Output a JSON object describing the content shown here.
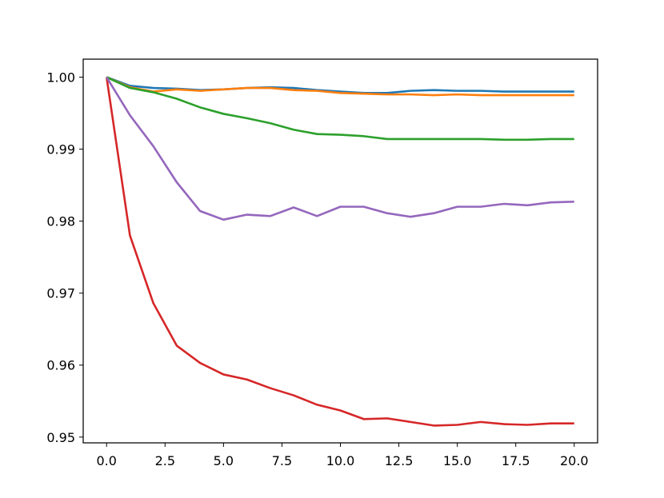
{
  "chart_data": {
    "type": "line",
    "title": "",
    "xlabel": "",
    "ylabel": "",
    "xlim": [
      -1,
      21
    ],
    "ylim": [
      0.9492,
      1.0025
    ],
    "grid": false,
    "x_ticks": [
      0,
      2.5,
      5,
      7.5,
      10,
      12.5,
      15,
      17.5,
      20
    ],
    "x_tick_labels": [
      "0.0",
      "2.5",
      "5.0",
      "7.5",
      "10.0",
      "12.5",
      "15.0",
      "17.5",
      "20.0"
    ],
    "y_ticks": [
      0.95,
      0.96,
      0.97,
      0.98,
      0.99,
      1.0
    ],
    "y_tick_labels": [
      "0.95",
      "0.96",
      "0.97",
      "0.98",
      "0.99",
      "1.00"
    ],
    "x": [
      0,
      1,
      2,
      3,
      4,
      5,
      6,
      7,
      8,
      9,
      10,
      11,
      12,
      13,
      14,
      15,
      16,
      17,
      18,
      19,
      20
    ],
    "series": [
      {
        "color": "#1f77b4",
        "values": [
          1.0,
          0.9988,
          0.9985,
          0.9984,
          0.9982,
          0.9983,
          0.9985,
          0.9986,
          0.9985,
          0.9982,
          0.998,
          0.9978,
          0.9978,
          0.9981,
          0.9982,
          0.9981,
          0.9981,
          0.998,
          0.998,
          0.998,
          0.998
        ]
      },
      {
        "color": "#ff7f0e",
        "values": [
          1.0,
          0.9986,
          0.998,
          0.9983,
          0.9981,
          0.9983,
          0.9985,
          0.9985,
          0.9982,
          0.9981,
          0.9978,
          0.9977,
          0.9976,
          0.9976,
          0.9975,
          0.9976,
          0.9975,
          0.9975,
          0.9975,
          0.9975,
          0.9975
        ]
      },
      {
        "color": "#2ca02c",
        "values": [
          1.0,
          0.9985,
          0.9979,
          0.997,
          0.9958,
          0.9949,
          0.9943,
          0.9936,
          0.9927,
          0.9921,
          0.992,
          0.9918,
          0.9914,
          0.9914,
          0.9914,
          0.9914,
          0.9914,
          0.9913,
          0.9913,
          0.9914,
          0.9914
        ]
      },
      {
        "color": "#d62728",
        "values": [
          1.0,
          0.978,
          0.9686,
          0.9627,
          0.9603,
          0.9587,
          0.958,
          0.9568,
          0.9558,
          0.9545,
          0.9537,
          0.9525,
          0.9526,
          0.9521,
          0.9516,
          0.9517,
          0.9521,
          0.9518,
          0.9517,
          0.9519,
          0.9519
        ]
      },
      {
        "color": "#9467bd",
        "values": [
          1.0,
          0.9947,
          0.9904,
          0.9854,
          0.9814,
          0.9802,
          0.9809,
          0.9807,
          0.9819,
          0.9807,
          0.982,
          0.982,
          0.9811,
          0.9806,
          0.9811,
          0.982,
          0.982,
          0.9824,
          0.9822,
          0.9826,
          0.9827
        ]
      }
    ]
  }
}
